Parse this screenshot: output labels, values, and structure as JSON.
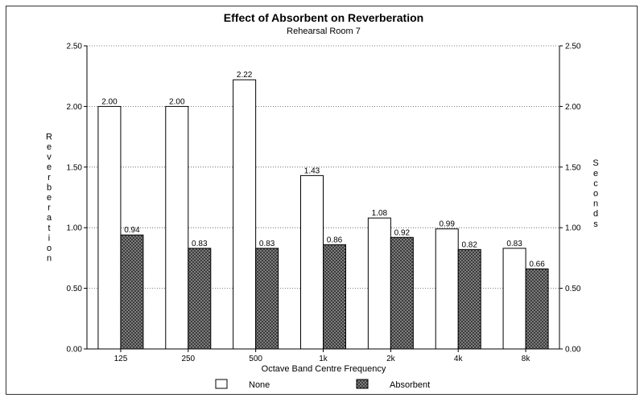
{
  "chart_data": {
    "type": "bar",
    "title": "Effect of Absorbent on Reverberation",
    "subtitle": "Rehearsal Room 7",
    "xlabel": "Octave Band Centre Frequency",
    "ylabel_left": "Reverberation",
    "ylabel_right": "Seconds",
    "categories": [
      "125",
      "250",
      "500",
      "1k",
      "2k",
      "4k",
      "8k"
    ],
    "ylim": [
      0,
      2.5
    ],
    "yticks": [
      "0.00",
      "0.50",
      "1.00",
      "1.50",
      "2.00",
      "2.50"
    ],
    "grid": true,
    "legend_position": "bottom",
    "series": [
      {
        "name": "None",
        "values": [
          2.0,
          2.0,
          2.22,
          1.43,
          1.08,
          0.99,
          0.83
        ],
        "labels": [
          "2.00",
          "2.00",
          "2.22",
          "1.43",
          "1.08",
          "0.99",
          "0.83"
        ]
      },
      {
        "name": "Absorbent",
        "values": [
          0.94,
          0.83,
          0.83,
          0.86,
          0.92,
          0.82,
          0.66
        ],
        "labels": [
          "0.94",
          "0.83",
          "0.83",
          "0.86",
          "0.92",
          "0.82",
          "0.66"
        ]
      }
    ]
  },
  "colors": {
    "none_fill": "#ffffff",
    "absorbent_fill": "#3a3a3a",
    "axis": "#000000",
    "grid": "#555555"
  }
}
